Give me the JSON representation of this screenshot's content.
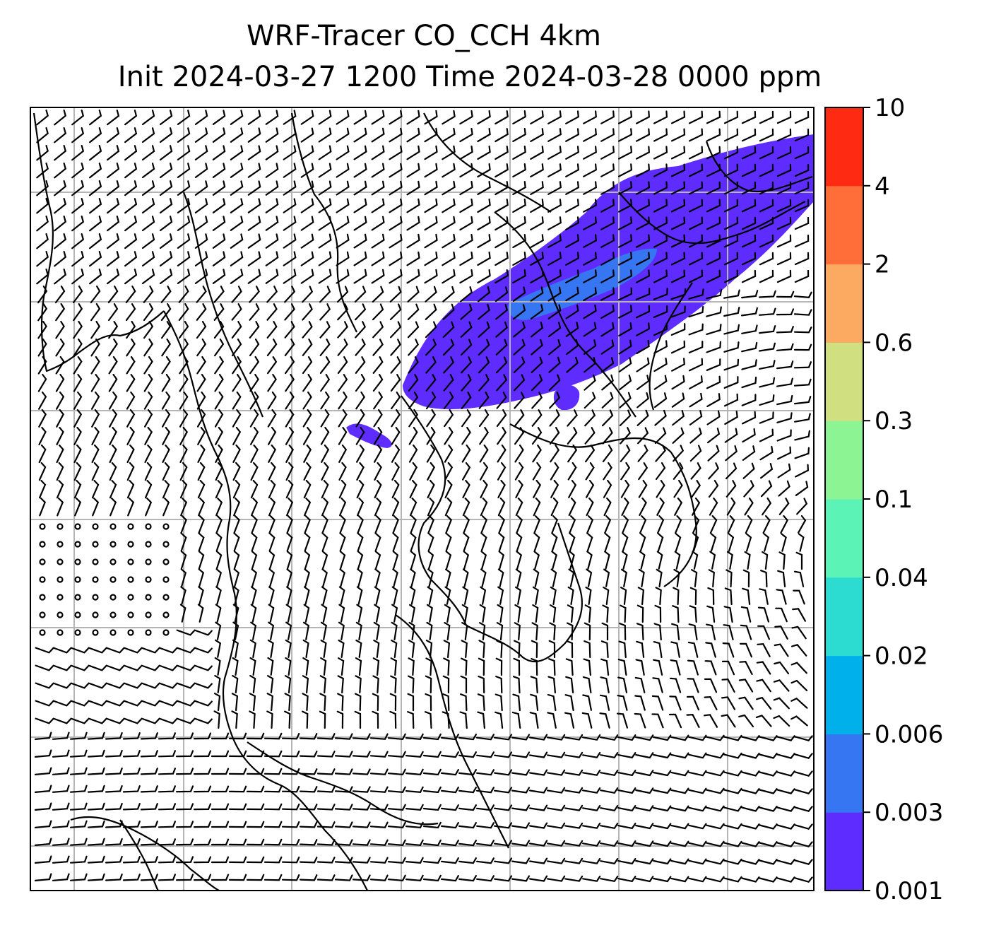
{
  "title": {
    "line1": "WRF-Tracer CO_CCH 4km",
    "line2": "Init 2024-03-27 1200 Time 2024-03-28 0000 ppm"
  },
  "colorbar": {
    "ticks": [
      "0.001",
      "0.003",
      "0.006",
      "0.02",
      "0.04",
      "0.1",
      "0.3",
      "0.6",
      "2",
      "4",
      "10"
    ],
    "colors": [
      "#5f2cff",
      "#3676f2",
      "#00b0ea",
      "#2cdcd0",
      "#5cf4b6",
      "#8cf492",
      "#d0e080",
      "#fcaa62",
      "#ff6e38",
      "#ff2a12"
    ]
  },
  "map": {
    "plume_color": "#5f2cff",
    "plume_core_color": "#3676f2",
    "gridline_color": "#b5b5b5",
    "coast_color": "#000000"
  }
}
